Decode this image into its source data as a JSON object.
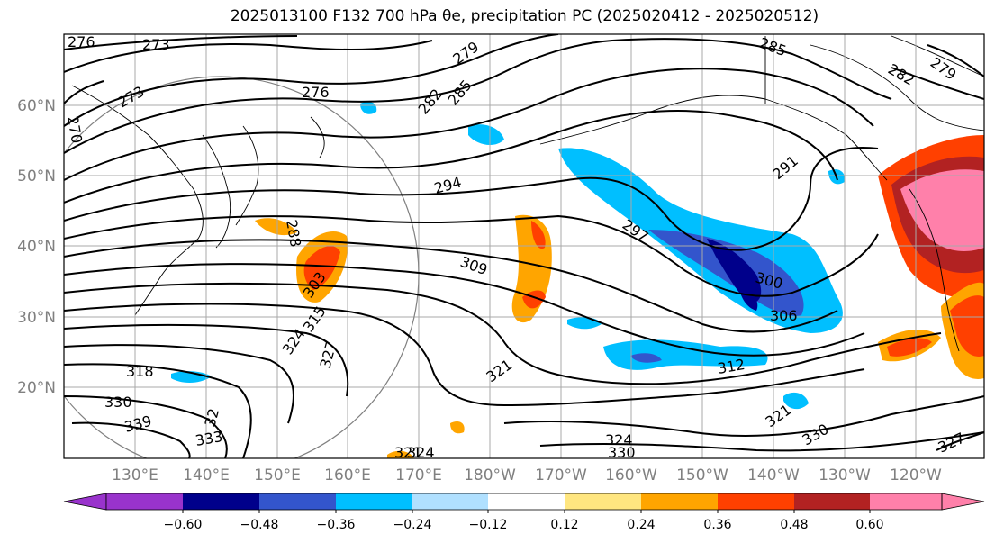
{
  "title": "2025013100 F132 700 hPa θe, precipitation PC (2025020412 - 2025020512)",
  "lat_labels": [
    "60°N",
    "50°N",
    "40°N",
    "30°N",
    "20°N"
  ],
  "lon_labels": [
    "130°E",
    "140°E",
    "150°E",
    "160°E",
    "170°E",
    "180°W",
    "170°W",
    "160°W",
    "150°W",
    "140°W",
    "130°W",
    "120°W"
  ],
  "colorbar": {
    "colors": [
      "#9933cc",
      "#00008b",
      "#3355cc",
      "#00bfff",
      "#b0e0ff",
      "#ffffff",
      "#ffe680",
      "#ffa500",
      "#ff4000",
      "#b22222",
      "#ff80aa"
    ],
    "ticks": [
      "−0.60",
      "−0.48",
      "−0.36",
      "−0.24",
      "−0.12",
      "0.12",
      "0.24",
      "0.36",
      "0.48",
      "0.60"
    ]
  },
  "contour_labels": [
    "276",
    "273",
    "273",
    "270",
    "276",
    "279",
    "282",
    "285",
    "285",
    "282",
    "279",
    "288",
    "294",
    "291",
    "297",
    "303",
    "309",
    "300",
    "306",
    "315",
    "324",
    "327",
    "318",
    "330",
    "339",
    "333",
    "321",
    "321",
    "312",
    "321",
    "324",
    "324",
    "330",
    "330",
    "327",
    "32"
  ]
}
